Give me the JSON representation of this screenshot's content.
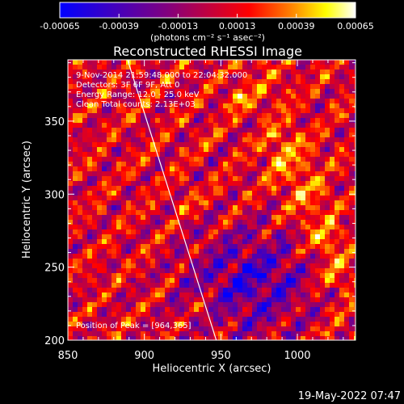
{
  "chart_data": {
    "type": "heatmap",
    "title": "Reconstructed RHESSI Image",
    "xlabel": "Heliocentric X (arcsec)",
    "ylabel": "Heliocentric Y (arcsec)",
    "xlim": [
      850,
      1038
    ],
    "ylim": [
      200,
      392
    ],
    "x_ticks": [
      "850",
      "900",
      "950",
      "1000"
    ],
    "x_tick_values": [
      850,
      900,
      950,
      1000
    ],
    "y_ticks": [
      "200",
      "250",
      "300",
      "350"
    ],
    "y_tick_values": [
      200,
      250,
      300,
      350
    ],
    "colorbar": {
      "min": -0.00065,
      "max": 0.00065,
      "tick_labels": [
        "-0.00065",
        "-0.00039",
        "-0.00013",
        "0.00013",
        "0.00039",
        "0.00065"
      ],
      "tick_values": [
        -0.00065,
        -0.00039,
        -0.00013,
        0.00013,
        0.00039,
        0.00065
      ],
      "unit_label": "(photons cm⁻² s⁻¹ asec⁻²)",
      "colors": [
        "#0000ff",
        "#4000c0",
        "#800080",
        "#c00040",
        "#ff0000",
        "#ff8000",
        "#ffff00",
        "#ffffff"
      ]
    },
    "annotations": [
      "9-Nov-2014 21:59:48.000 to 22:04:32.000",
      "Detectors: 3F 6F 9F, Att 0",
      "Energy Range: 12.0 - 25.0 keV",
      "Clean     Total counts: 2.13E+03"
    ],
    "peak_label": "Position of Peak = [964,365]",
    "peak": [
      964,
      365
    ],
    "limb_line": [
      [
        889,
        392
      ],
      [
        947,
        200
      ]
    ],
    "timestamp": "19-May-2022 07:47"
  }
}
